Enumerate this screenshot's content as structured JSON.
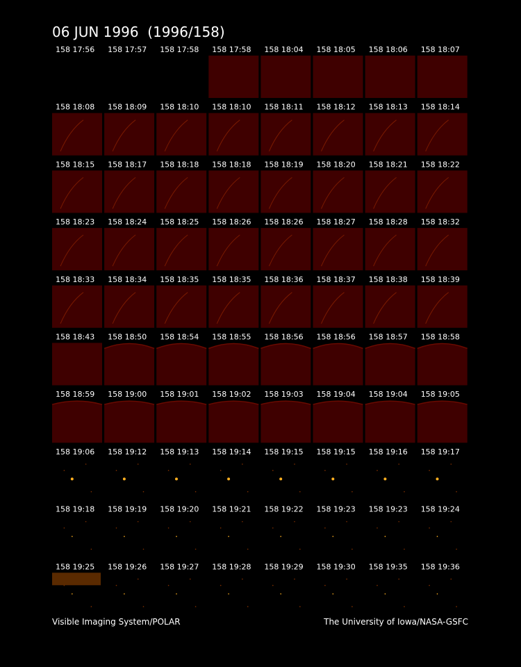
{
  "header": {
    "title": "06 JUN 1996  (1996/158)"
  },
  "frames": [
    [
      "158 17:56",
      "158 17:57",
      "158 17:58",
      "158 17:58",
      "158 18:04",
      "158 18:05",
      "158 18:06",
      "158 18:07"
    ],
    [
      "158 18:08",
      "158 18:09",
      "158 18:10",
      "158 18:10",
      "158 18:11",
      "158 18:12",
      "158 18:13",
      "158 18:14"
    ],
    [
      "158 18:15",
      "158 18:17",
      "158 18:18",
      "158 18:18",
      "158 18:19",
      "158 18:20",
      "158 18:21",
      "158 18:22"
    ],
    [
      "158 18:23",
      "158 18:24",
      "158 18:25",
      "158 18:26",
      "158 18:26",
      "158 18:27",
      "158 18:28",
      "158 18:32"
    ],
    [
      "158 18:33",
      "158 18:34",
      "158 18:35",
      "158 18:35",
      "158 18:36",
      "158 18:37",
      "158 18:38",
      "158 18:39"
    ],
    [
      "158 18:43",
      "158 18:50",
      "158 18:54",
      "158 18:55",
      "158 18:56",
      "158 18:56",
      "158 18:57",
      "158 18:58"
    ],
    [
      "158 18:59",
      "158 19:00",
      "158 19:01",
      "158 19:02",
      "158 19:03",
      "158 19:04",
      "158 19:04",
      "158 19:05"
    ],
    [
      "158 19:06",
      "158 19:12",
      "158 19:13",
      "158 19:14",
      "158 19:15",
      "158 19:15",
      "158 19:16",
      "158 19:17"
    ],
    [
      "158 19:18",
      "158 19:19",
      "158 19:20",
      "158 19:21",
      "158 19:22",
      "158 19:23",
      "158 19:23",
      "158 19:24"
    ],
    [
      "158 19:25",
      "158 19:26",
      "158 19:27",
      "158 19:28",
      "158 19:29",
      "158 19:30",
      "158 19:35",
      "158 19:36"
    ]
  ],
  "footer": {
    "left": "Visible Imaging System/POLAR",
    "right": "The University of Iowa/NASA-GSFC"
  }
}
